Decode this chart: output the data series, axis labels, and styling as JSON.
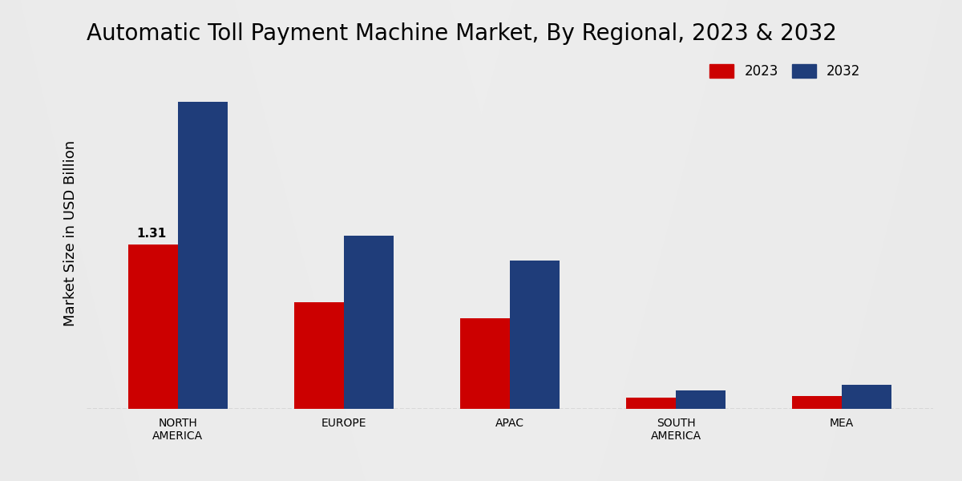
{
  "title": "Automatic Toll Payment Machine Market, By Regional, 2023 & 2032",
  "ylabel": "Market Size in USD Billion",
  "categories": [
    "NORTH\nAMERICA",
    "EUROPE",
    "APAC",
    "SOUTH\nAMERICA",
    "MEA"
  ],
  "values_2023": [
    1.31,
    0.85,
    0.72,
    0.09,
    0.1
  ],
  "values_2032": [
    2.45,
    1.38,
    1.18,
    0.15,
    0.19
  ],
  "color_2023": "#cc0000",
  "color_2032": "#1f3d7a",
  "bar_width": 0.3,
  "annotation_label": "1.31",
  "background_top": "#d8d8d8",
  "background_mid": "#ebebeb",
  "background_bot": "#d4d4d4",
  "title_fontsize": 20,
  "axis_label_fontsize": 13,
  "tick_fontsize": 10,
  "legend_fontsize": 12,
  "ylim_max": 2.8
}
